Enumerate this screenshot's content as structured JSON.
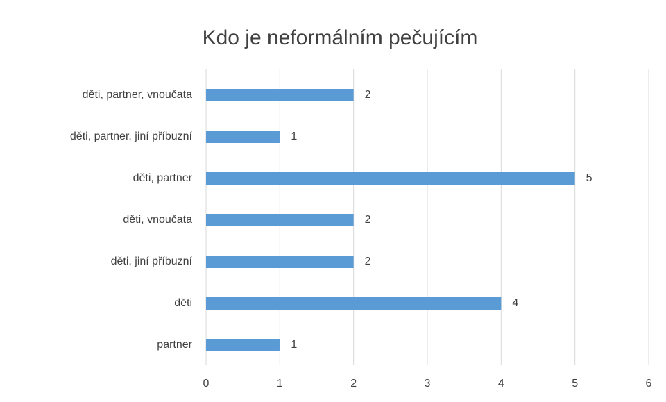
{
  "chart_data": {
    "type": "barh",
    "title": "Kdo je neformálním pečujícím",
    "categories": [
      "děti, partner, vnoučata",
      "děti, partner, jiní příbuzní",
      "děti, partner",
      "děti, vnoučata",
      "děti, jiní příbuzní",
      "děti",
      "partner"
    ],
    "values": [
      2,
      1,
      5,
      2,
      2,
      4,
      1
    ],
    "color": "#5b9bd5",
    "xlim": [
      0,
      6
    ],
    "xticks": [
      0,
      1,
      2,
      3,
      4,
      5,
      6
    ],
    "grid": true
  }
}
